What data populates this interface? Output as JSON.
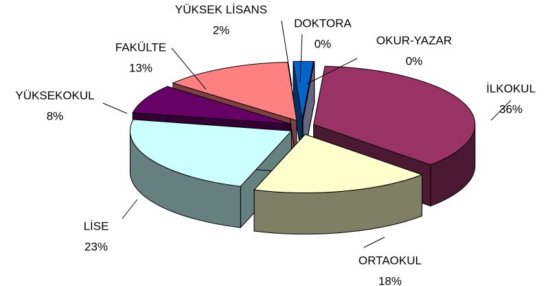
{
  "chart_data": {
    "type": "pie",
    "categories": [
      "İLKOKUL",
      "ORTAOKUL",
      "LİSE",
      "YÜKSEKOKUL",
      "FAKÜLTE",
      "YÜKSEK LİSANS",
      "DOKTORA",
      "OKUR-YAZAR"
    ],
    "values": [
      36,
      18,
      23,
      8,
      13,
      2,
      0,
      0
    ],
    "value_labels": [
      "36%",
      "18%",
      "23%",
      "8%",
      "13%",
      "2%",
      "0%",
      "0%"
    ],
    "colors": [
      "#993366",
      "#ffffcc",
      "#ccffff",
      "#660066",
      "#ff8080",
      "#0066cc",
      "#003366",
      "#ccccff"
    ]
  }
}
